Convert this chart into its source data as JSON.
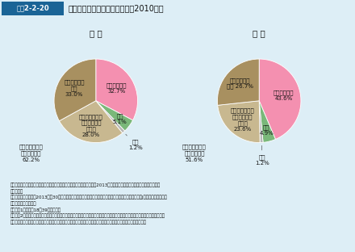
{
  "title_box_label": "図表2-2-20",
  "title_text": "未婚者の異性との交際の状況（2010年）",
  "background_color": "#ddeef6",
  "male_title": "男 性",
  "female_title": "女 性",
  "male_slices": [
    32.7,
    5.1,
    1.2,
    28.0,
    33.0
  ],
  "female_slices": [
    43.6,
    4.9,
    1.2,
    23.6,
    26.7
  ],
  "slice_colors": [
    "#f490b0",
    "#7ab87a",
    "#b8b8b8",
    "#c8b890",
    "#a89060"
  ],
  "male_inner_labels": [
    {
      "r": 0.58,
      "text": "交際相手あり\n32.7%"
    },
    {
      "r": 0.72,
      "text": "不け\n5.1%"
    },
    {
      "r": 0.0,
      "text": null
    },
    {
      "r": 0.6,
      "text": "とくに異性との\n交際を望んで\nいない\n28.0%"
    },
    {
      "r": 0.6,
      "text": "交際を望んで\nいる\n33.0%"
    }
  ],
  "female_inner_labels": [
    {
      "r": 0.6,
      "text": "交際相手あり\n43.6%"
    },
    {
      "r": 0.72,
      "text": "不け\n4.9%"
    },
    {
      "r": 0.0,
      "text": null
    },
    {
      "r": 0.6,
      "text": "とくに異性との\n交際を望んで\nいない\n23.6%"
    },
    {
      "r": 0.62,
      "text": "交際を望んで\nいる 26.7%"
    }
  ],
  "male_outer_label": "交際をしている\n異性はいない\n62.2%",
  "female_outer_label": "交際をしている\n異性はいない\n51.6%",
  "male_fugun_label": "不群\n1.2%",
  "female_fugun_label": "不群\n1.2%",
  "note_lines": [
    "資料：国立社会保障・人口問題研究所「出生動向基本調査」および課田（2013）より厚生労働省設策統括官付政策評価官室",
    "　　　作成",
    "引用文献：課田健司（2013）「30代後半を含めた近年の出産・結婚動向」ワーキングペーパーシリーズ（J）、国立社会保障・",
    "　　　人口問題研究所",
    "（注）　1．対象は18～39歳未婚者。",
    "　　　　2．「あなたには、現在交際している異性がいますか。」という設問に対し、「婚約者がいる」、「恋人として交際してい",
    "　　　　　る異性がいる」及び「友人として交際している異性がいる」と答えた者を「交際相手あり」としている。"
  ]
}
